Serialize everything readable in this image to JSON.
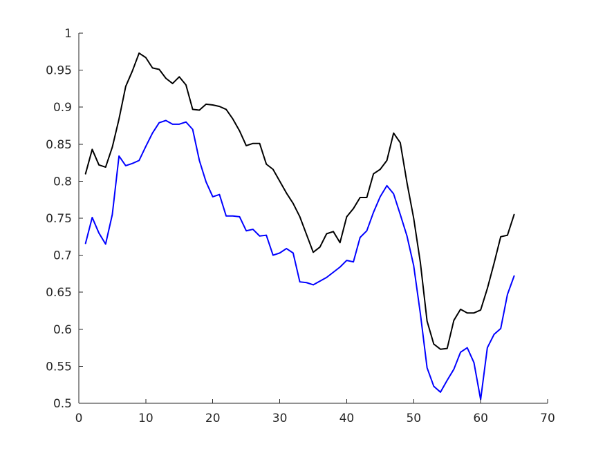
{
  "chart_data": {
    "type": "line",
    "title": "",
    "xlabel": "",
    "ylabel": "",
    "xlim": [
      0,
      70
    ],
    "ylim": [
      0.5,
      1
    ],
    "xticks": [
      0,
      10,
      20,
      30,
      40,
      50,
      60,
      70
    ],
    "xtick_labels": [
      "0",
      "10",
      "20",
      "30",
      "40",
      "50",
      "60",
      "70"
    ],
    "yticks": [
      0.5,
      0.55,
      0.6,
      0.65,
      0.7,
      0.75,
      0.8,
      0.85,
      0.9,
      0.95,
      1
    ],
    "ytick_labels": [
      "0.5",
      "0.55",
      "0.6",
      "0.65",
      "0.7",
      "0.75",
      "0.8",
      "0.85",
      "0.9",
      "0.95",
      "1"
    ],
    "grid": false,
    "x": [
      1,
      2,
      3,
      4,
      5,
      6,
      7,
      8,
      9,
      10,
      11,
      12,
      13,
      14,
      15,
      16,
      17,
      18,
      19,
      20,
      21,
      22,
      23,
      24,
      25,
      26,
      27,
      28,
      29,
      30,
      31,
      32,
      33,
      34,
      35,
      36,
      37,
      38,
      39,
      40,
      41,
      42,
      43,
      44,
      45,
      46,
      47,
      48,
      49,
      50,
      51,
      52,
      53,
      54,
      55,
      56,
      57,
      58,
      59,
      60,
      61,
      62,
      63,
      64,
      65
    ],
    "series": [
      {
        "color": "#000000",
        "values": [
          0.81,
          0.843,
          0.822,
          0.819,
          0.846,
          0.884,
          0.928,
          0.949,
          0.973,
          0.967,
          0.953,
          0.951,
          0.939,
          0.932,
          0.941,
          0.93,
          0.897,
          0.896,
          0.904,
          0.903,
          0.901,
          0.897,
          0.884,
          0.868,
          0.848,
          0.851,
          0.851,
          0.823,
          0.816,
          0.8,
          0.784,
          0.77,
          0.752,
          0.728,
          0.704,
          0.711,
          0.729,
          0.732,
          0.717,
          0.752,
          0.763,
          0.778,
          0.778,
          0.81,
          0.816,
          0.828,
          0.865,
          0.852,
          0.798,
          0.75,
          0.69,
          0.611,
          0.58,
          0.573,
          0.574,
          0.612,
          0.627,
          0.622,
          0.622,
          0.626,
          0.655,
          0.689,
          0.725,
          0.727,
          0.755
        ]
      },
      {
        "color": "#0000ff",
        "values": [
          0.716,
          0.751,
          0.73,
          0.715,
          0.755,
          0.834,
          0.821,
          0.824,
          0.828,
          0.847,
          0.865,
          0.879,
          0.882,
          0.877,
          0.877,
          0.88,
          0.87,
          0.828,
          0.799,
          0.779,
          0.782,
          0.753,
          0.753,
          0.752,
          0.733,
          0.735,
          0.726,
          0.727,
          0.7,
          0.703,
          0.709,
          0.703,
          0.664,
          0.663,
          0.66,
          0.665,
          0.67,
          0.677,
          0.684,
          0.693,
          0.691,
          0.724,
          0.733,
          0.758,
          0.779,
          0.794,
          0.783,
          0.755,
          0.726,
          0.686,
          0.621,
          0.548,
          0.523,
          0.515,
          0.531,
          0.546,
          0.569,
          0.575,
          0.555,
          0.505,
          0.575,
          0.593,
          0.601,
          0.647,
          0.672
        ]
      }
    ]
  }
}
